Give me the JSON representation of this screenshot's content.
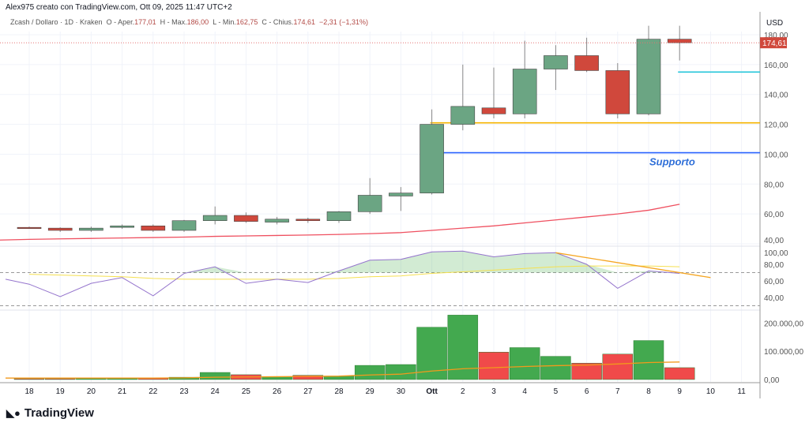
{
  "header": {
    "credit": "Alex975 creato con TradingView.com, Ott 09, 2025 11:47 UTC+2"
  },
  "legend": {
    "symbol": "Zcash / Dollaro · 1D · Kraken",
    "o_label": "O - Aper.",
    "o": "177,01",
    "h_label": "H - Max.",
    "h": "186,00",
    "l_label": "L - Min.",
    "l": "162,75",
    "c_label": "C - Chius.",
    "c": "174,61",
    "change": "−2,31 (−1,31%)"
  },
  "logo": "TradingView",
  "chart_data": [
    {
      "type": "candlestick",
      "currency": "USD",
      "last_price_label": "174,61",
      "ylim": [
        40,
        185
      ],
      "y_ticks": [
        "40,00",
        "60,00",
        "80,00",
        "100,00",
        "120,00",
        "140,00",
        "160,00",
        "180,00"
      ],
      "x_labels": [
        "18",
        "19",
        "20",
        "21",
        "22",
        "23",
        "24",
        "25",
        "26",
        "27",
        "28",
        "29",
        "30",
        "Ott",
        "2",
        "3",
        "4",
        "5",
        "6",
        "7",
        "8",
        "9",
        "10",
        "11"
      ],
      "ohlc": [
        [
          51,
          50.7,
          51.5,
          50
        ],
        [
          50.5,
          49,
          51,
          48
        ],
        [
          49,
          50.5,
          51.5,
          48
        ],
        [
          51,
          52,
          53,
          50
        ],
        [
          52,
          49,
          53,
          48
        ],
        [
          49,
          55.5,
          56,
          48
        ],
        [
          55.5,
          59,
          65,
          53
        ],
        [
          59,
          55,
          61,
          54
        ],
        [
          54.5,
          56.5,
          58,
          53
        ],
        [
          56.5,
          55.5,
          57.5,
          54
        ],
        [
          55.5,
          61.5,
          62,
          54
        ],
        [
          61.5,
          72.5,
          84,
          60
        ],
        [
          72,
          74,
          78,
          62
        ],
        [
          74,
          120,
          130,
          73
        ],
        [
          120,
          132,
          160,
          116
        ],
        [
          131,
          127,
          158,
          124
        ],
        [
          127,
          157,
          176,
          124
        ],
        [
          157,
          166,
          173,
          143
        ],
        [
          166,
          156,
          178,
          155
        ],
        [
          156,
          127,
          161,
          124
        ],
        [
          127,
          177,
          186,
          126
        ],
        [
          177.01,
          174.61,
          186,
          162.75
        ]
      ],
      "moving_average": [
        43,
        43.3,
        43.6,
        43.9,
        44.2,
        44.5,
        45,
        45.3,
        45.6,
        45.9,
        46.3,
        46.8,
        47.5,
        49,
        50.5,
        52,
        54,
        56,
        58,
        60,
        62.5,
        66.5
      ],
      "levels": [
        {
          "value": 155,
          "color": "#26c6da",
          "from": "9"
        },
        {
          "value": 121,
          "color": "#f5b400",
          "from": "Ott"
        },
        {
          "value": 101,
          "color": "#2962ff",
          "from": "Ott",
          "label": "Supporto"
        }
      ],
      "colors": {
        "up": "#6ba583",
        "down": "#d0483c",
        "ma": "#ef5060"
      }
    },
    {
      "type": "line",
      "name": "RSI",
      "ylim": [
        30,
        100
      ],
      "y_ticks": [
        "40,00",
        "60,00",
        "80,00",
        "100,00"
      ],
      "bands": [
        70,
        30
      ],
      "values": [
        56,
        41,
        57,
        64,
        42,
        69,
        77,
        57,
        62,
        58,
        72,
        85,
        86,
        95,
        96,
        89,
        93,
        94,
        80,
        51,
        72,
        69
      ],
      "ma": [
        68,
        67,
        66,
        65,
        63,
        62,
        62,
        62,
        62,
        62,
        63,
        65,
        66,
        69,
        71,
        73,
        75,
        77,
        78,
        78,
        78,
        77
      ],
      "divergence": [
        [
          94,
          "5"
        ],
        [
          64,
          "10"
        ]
      ]
    },
    {
      "type": "bar",
      "name": "Volume",
      "ylim": [
        0,
        230000
      ],
      "y_ticks": [
        "0,00",
        "100.000,00",
        "200.000,00"
      ],
      "values": [
        3000,
        3000,
        4000,
        4000,
        5000,
        8000,
        25000,
        17000,
        10000,
        15000,
        12000,
        50000,
        53000,
        185000,
        228000,
        97000,
        113000,
        82000,
        58000,
        90000,
        138000,
        42000
      ],
      "ma": [
        5000,
        5000,
        5000,
        5000,
        5000,
        6000,
        8000,
        9000,
        10000,
        11000,
        12000,
        16000,
        19000,
        30000,
        38000,
        42000,
        46000,
        49000,
        51000,
        55000,
        60000,
        62000
      ],
      "colors": {
        "up": "#43a94f",
        "down": "#f04a4a",
        "ma": "#f29a1c"
      }
    }
  ]
}
